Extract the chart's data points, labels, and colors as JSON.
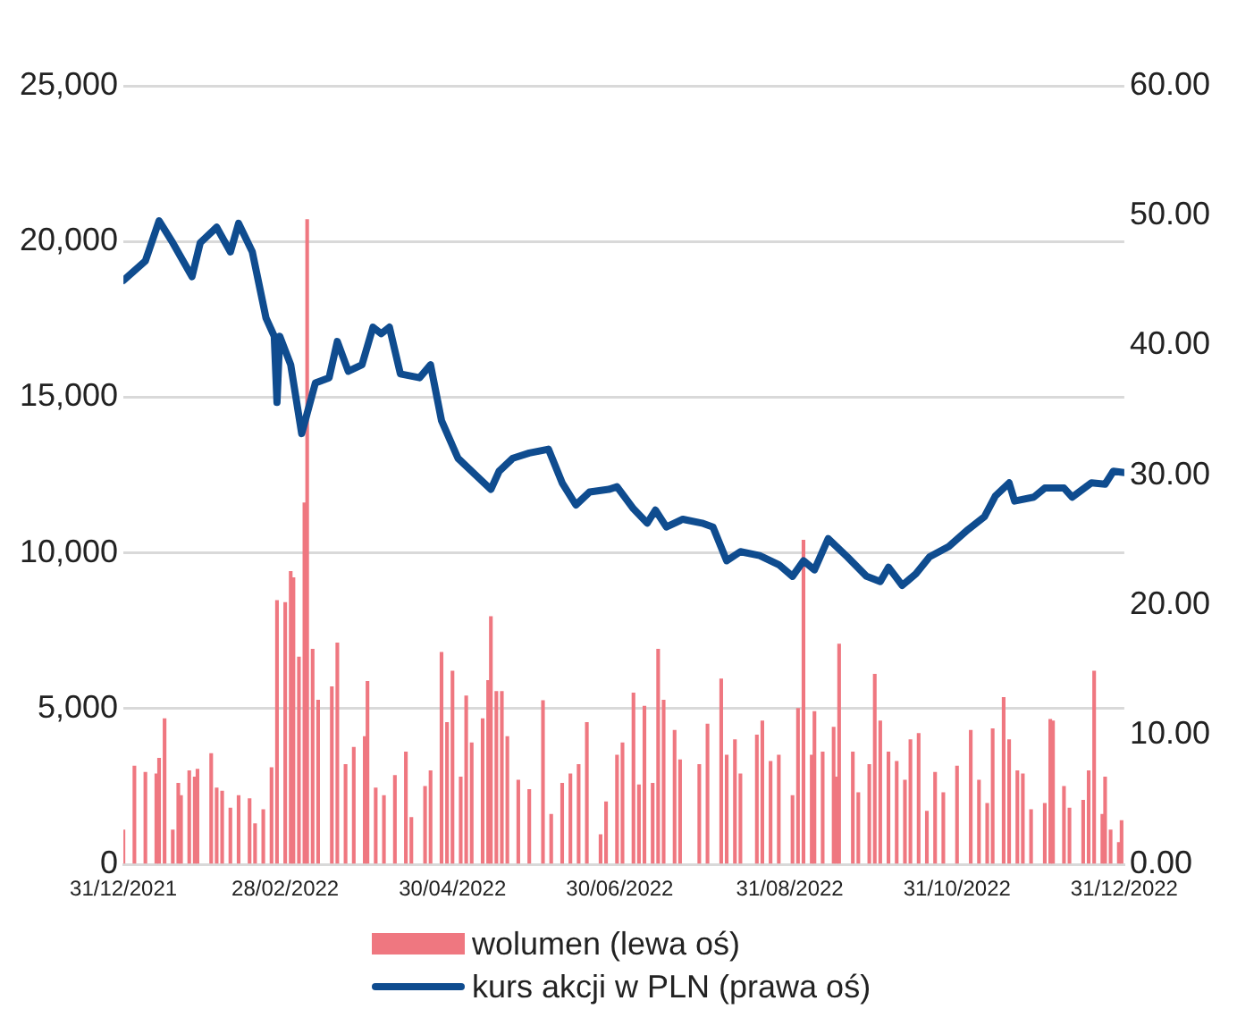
{
  "chart_data": {
    "type": "bar",
    "xlim": [
      "2021-12-31",
      "2022-12-31"
    ],
    "xticks": [
      {
        "value": "2021-12-31",
        "label": "31/12/2021"
      },
      {
        "value": "2022-02-28",
        "label": "28/02/2022"
      },
      {
        "value": "2022-04-30",
        "label": "30/04/2022"
      },
      {
        "value": "2022-06-30",
        "label": "30/06/2022"
      },
      {
        "value": "2022-08-31",
        "label": "31/08/2022"
      },
      {
        "value": "2022-10-31",
        "label": "31/10/2022"
      },
      {
        "value": "2022-12-31",
        "label": "31/12/2022"
      }
    ],
    "ylim": [
      0,
      25000
    ],
    "yticks": [
      {
        "value": 0,
        "label": "0"
      },
      {
        "value": 5000,
        "label": "5,000"
      },
      {
        "value": 10000,
        "label": "10,000"
      },
      {
        "value": 15000,
        "label": "15,000"
      },
      {
        "value": 20000,
        "label": "20,000"
      },
      {
        "value": 25000,
        "label": "25,000"
      }
    ],
    "y2lim": [
      0,
      60
    ],
    "y2ticks": [
      {
        "value": 0,
        "label": "0.00"
      },
      {
        "value": 10,
        "label": "10.00"
      },
      {
        "value": 20,
        "label": "20.00"
      },
      {
        "value": 30,
        "label": "30.00"
      },
      {
        "value": 40,
        "label": "40.00"
      },
      {
        "value": 50,
        "label": "50.00"
      },
      {
        "value": 60,
        "label": "60.00"
      }
    ],
    "grid": "y",
    "legend": "bottom",
    "series": [
      {
        "name": "wolumen (lewa oś)",
        "color": "#ef7780",
        "x": [
          "2021-12-31",
          "2022-01-04",
          "2022-01-08",
          "2022-01-12",
          "2022-01-13",
          "2022-01-15",
          "2022-01-18",
          "2022-01-20",
          "2022-01-21",
          "2022-01-24",
          "2022-01-26",
          "2022-01-27",
          "2022-02-01",
          "2022-02-03",
          "2022-02-05",
          "2022-02-08",
          "2022-02-11",
          "2022-02-15",
          "2022-02-17",
          "2022-02-20",
          "2022-02-23",
          "2022-02-25",
          "2022-02-28",
          "2022-03-02",
          "2022-03-03",
          "2022-03-05",
          "2022-03-07",
          "2022-03-08",
          "2022-03-10",
          "2022-03-12",
          "2022-03-17",
          "2022-03-19",
          "2022-03-22",
          "2022-03-25",
          "2022-03-29",
          "2022-03-30",
          "2022-04-02",
          "2022-04-05",
          "2022-04-09",
          "2022-04-13",
          "2022-04-15",
          "2022-04-20",
          "2022-04-22",
          "2022-04-26",
          "2022-04-28",
          "2022-04-30",
          "2022-05-03",
          "2022-05-05",
          "2022-05-07",
          "2022-05-11",
          "2022-05-13",
          "2022-05-14",
          "2022-05-16",
          "2022-05-18",
          "2022-05-20",
          "2022-05-24",
          "2022-05-28",
          "2022-06-02",
          "2022-06-05",
          "2022-06-09",
          "2022-06-12",
          "2022-06-15",
          "2022-06-18",
          "2022-06-23",
          "2022-06-25",
          "2022-06-29",
          "2022-07-01",
          "2022-07-05",
          "2022-07-07",
          "2022-07-09",
          "2022-07-12",
          "2022-07-14",
          "2022-07-16",
          "2022-07-20",
          "2022-07-22",
          "2022-07-29",
          "2022-08-01",
          "2022-08-06",
          "2022-08-08",
          "2022-08-11",
          "2022-08-13",
          "2022-08-19",
          "2022-08-21",
          "2022-08-24",
          "2022-08-27",
          "2022-09-01",
          "2022-09-03",
          "2022-09-05",
          "2022-09-08",
          "2022-09-09",
          "2022-09-12",
          "2022-09-16",
          "2022-09-17",
          "2022-09-18",
          "2022-09-23",
          "2022-09-25",
          "2022-09-29",
          "2022-10-01",
          "2022-10-03",
          "2022-10-06",
          "2022-10-09",
          "2022-10-12",
          "2022-10-14",
          "2022-10-17",
          "2022-10-20",
          "2022-10-23",
          "2022-10-26",
          "2022-10-31",
          "2022-11-05",
          "2022-11-08",
          "2022-11-11",
          "2022-11-13",
          "2022-11-17",
          "2022-11-19",
          "2022-11-22",
          "2022-11-24",
          "2022-11-27",
          "2022-12-02",
          "2022-12-04",
          "2022-12-05",
          "2022-12-09",
          "2022-12-11",
          "2022-12-16",
          "2022-12-18",
          "2022-12-20",
          "2022-12-23",
          "2022-12-24",
          "2022-12-26",
          "2022-12-29",
          "2022-12-30"
        ],
        "values": [
          1100,
          3150,
          2950,
          2900,
          3400,
          4670,
          1100,
          2600,
          2200,
          3000,
          2800,
          3050,
          3550,
          2450,
          2350,
          1800,
          2200,
          2100,
          1300,
          1750,
          3100,
          8470,
          8400,
          9400,
          9200,
          6650,
          11600,
          20700,
          6900,
          5270,
          5700,
          7100,
          3200,
          3750,
          4100,
          5870,
          2450,
          2200,
          2850,
          3600,
          1500,
          2500,
          3000,
          6800,
          4550,
          6200,
          2800,
          5400,
          3900,
          4670,
          5900,
          7950,
          5550,
          5550,
          4100,
          2700,
          2400,
          5250,
          1600,
          2600,
          2900,
          3200,
          4550,
          950,
          2000,
          3500,
          3900,
          5500,
          2550,
          5070,
          2600,
          6900,
          5270,
          4300,
          3350,
          3200,
          4500,
          5950,
          3500,
          4000,
          2900,
          4150,
          4600,
          3300,
          3500,
          2200,
          5000,
          10400,
          3500,
          4900,
          3600,
          4400,
          2800,
          7070,
          3600,
          2300,
          3200,
          6100,
          4600,
          3600,
          3300,
          2700,
          4000,
          4200,
          1700,
          2950,
          2300,
          3150,
          4300,
          2700,
          1950,
          4350,
          5350,
          4000,
          3000,
          2900,
          1750,
          1950,
          4650,
          4600,
          2500,
          1800,
          2050,
          3000,
          6200,
          1600,
          2800,
          1100,
          700,
          1400
        ]
      },
      {
        "name": "kurs akcji w PLN (prawa oś)",
        "type": "line",
        "axis": "y2",
        "color": "#0f4c8f",
        "x": [
          "2021-12-31",
          "2022-01-08",
          "2022-01-13",
          "2022-01-18",
          "2022-01-25",
          "2022-01-28",
          "2022-02-03",
          "2022-02-08",
          "2022-02-11",
          "2022-02-16",
          "2022-02-21",
          "2022-02-24",
          "2022-02-25",
          "2022-02-26",
          "2022-03-02",
          "2022-03-06",
          "2022-03-11",
          "2022-03-16",
          "2022-03-19",
          "2022-03-23",
          "2022-03-28",
          "2022-04-01",
          "2022-04-04",
          "2022-04-07",
          "2022-04-11",
          "2022-04-18",
          "2022-04-22",
          "2022-04-26",
          "2022-05-02",
          "2022-05-09",
          "2022-05-14",
          "2022-05-17",
          "2022-05-22",
          "2022-05-28",
          "2022-06-04",
          "2022-06-09",
          "2022-06-14",
          "2022-06-19",
          "2022-06-26",
          "2022-06-29",
          "2022-07-05",
          "2022-07-10",
          "2022-07-13",
          "2022-07-17",
          "2022-07-23",
          "2022-07-30",
          "2022-08-03",
          "2022-08-08",
          "2022-08-13",
          "2022-08-20",
          "2022-08-27",
          "2022-09-01",
          "2022-09-05",
          "2022-09-09",
          "2022-09-14",
          "2022-09-21",
          "2022-09-28",
          "2022-10-03",
          "2022-10-06",
          "2022-10-11",
          "2022-10-16",
          "2022-10-21",
          "2022-10-28",
          "2022-11-04",
          "2022-11-10",
          "2022-11-14",
          "2022-11-19",
          "2022-11-21",
          "2022-11-28",
          "2022-12-02",
          "2022-12-09",
          "2022-12-12",
          "2022-12-19",
          "2022-12-24",
          "2022-12-27",
          "2022-12-31"
        ],
        "values": [
          45.0,
          46.5,
          49.6,
          47.9,
          45.3,
          47.9,
          49.1,
          47.2,
          49.4,
          47.2,
          42.1,
          40.7,
          35.6,
          40.7,
          38.5,
          33.2,
          37.1,
          37.5,
          40.3,
          38.0,
          38.5,
          41.4,
          40.9,
          41.4,
          37.8,
          37.5,
          38.5,
          34.2,
          31.3,
          29.9,
          28.9,
          30.3,
          31.3,
          31.7,
          32.0,
          29.4,
          27.7,
          28.7,
          28.9,
          29.1,
          27.4,
          26.3,
          27.3,
          26.0,
          26.6,
          26.3,
          26.0,
          23.4,
          24.1,
          23.8,
          23.1,
          22.2,
          23.4,
          22.7,
          25.1,
          23.7,
          22.2,
          21.8,
          22.9,
          21.5,
          22.4,
          23.7,
          24.5,
          25.8,
          26.8,
          28.4,
          29.4,
          28.0,
          28.3,
          29.0,
          29.0,
          28.3,
          29.4,
          29.3,
          30.3,
          30.2
        ]
      }
    ]
  }
}
